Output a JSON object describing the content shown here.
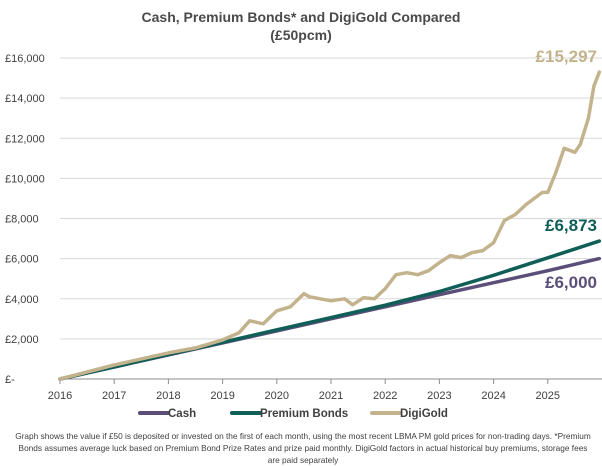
{
  "chart_data": {
    "type": "line",
    "title": "Cash, Premium Bonds* and DigiGold Compared",
    "subtitle": "(£50pcm)",
    "xlabel": "",
    "ylabel": "",
    "xlim": [
      2016,
      2026
    ],
    "ylim": [
      0,
      16000
    ],
    "y_ticks": [
      {
        "value": 0,
        "label": "£-"
      },
      {
        "value": 2000,
        "label": "£2,000"
      },
      {
        "value": 4000,
        "label": "£4,000"
      },
      {
        "value": 6000,
        "label": "£6,000"
      },
      {
        "value": 8000,
        "label": "£8,000"
      },
      {
        "value": 10000,
        "label": "£10,000"
      },
      {
        "value": 12000,
        "label": "£12,000"
      },
      {
        "value": 14000,
        "label": "£14,000"
      },
      {
        "value": 16000,
        "label": "£16,000"
      }
    ],
    "x_ticks": [
      "2016",
      "2017",
      "2018",
      "2019",
      "2020",
      "2021",
      "2022",
      "2023",
      "2024",
      "2025"
    ],
    "grid": true,
    "legend_position": "bottom",
    "series": [
      {
        "name": "Cash",
        "color": "#5b4f7a",
        "end_label": "£6,000",
        "x": [
          2016.0,
          2017.0,
          2018.0,
          2019.0,
          2020.0,
          2021.0,
          2022.0,
          2023.0,
          2024.0,
          2025.0,
          2025.95
        ],
        "y": [
          0,
          600,
          1200,
          1800,
          2400,
          3000,
          3600,
          4200,
          4800,
          5400,
          6000
        ]
      },
      {
        "name": "Premium Bonds",
        "color": "#0f5e57",
        "end_label": "£6,873",
        "x": [
          2016.0,
          2017.0,
          2018.0,
          2019.0,
          2020.0,
          2021.0,
          2022.0,
          2023.0,
          2024.0,
          2025.0,
          2025.95
        ],
        "y": [
          0,
          605,
          1215,
          1830,
          2450,
          3060,
          3680,
          4360,
          5170,
          6040,
          6873
        ]
      },
      {
        "name": "DigiGold",
        "color": "#c3b38d",
        "end_label": "£15,297",
        "x": [
          2016.0,
          2016.5,
          2017.0,
          2017.5,
          2018.0,
          2018.5,
          2019.0,
          2019.3,
          2019.5,
          2019.75,
          2020.0,
          2020.25,
          2020.5,
          2020.6,
          2020.8,
          2021.0,
          2021.25,
          2021.4,
          2021.6,
          2021.8,
          2022.0,
          2022.2,
          2022.4,
          2022.6,
          2022.8,
          2023.0,
          2023.2,
          2023.4,
          2023.6,
          2023.8,
          2024.0,
          2024.2,
          2024.4,
          2024.6,
          2024.75,
          2024.9,
          2025.0,
          2025.15,
          2025.3,
          2025.5,
          2025.6,
          2025.75,
          2025.85,
          2025.95
        ],
        "y": [
          0,
          350,
          700,
          1000,
          1300,
          1550,
          1950,
          2300,
          2900,
          2750,
          3400,
          3600,
          4250,
          4100,
          4000,
          3900,
          4000,
          3700,
          4050,
          4000,
          4500,
          5200,
          5300,
          5200,
          5400,
          5800,
          6150,
          6050,
          6300,
          6400,
          6800,
          7900,
          8200,
          8700,
          9000,
          9300,
          9300,
          10300,
          11500,
          11300,
          11700,
          13000,
          14600,
          15297
        ]
      }
    ]
  },
  "footnote": "Graph shows the value if £50 is deposited or invested on the first of each month, using the most recent LBMA PM gold prices for non-trading days. *Premium Bonds assumes average luck based on Premium Bond Prize Rates and prize paid monthly. DigiGold factors in actual historical buy premiums, storage fees are paid separately"
}
